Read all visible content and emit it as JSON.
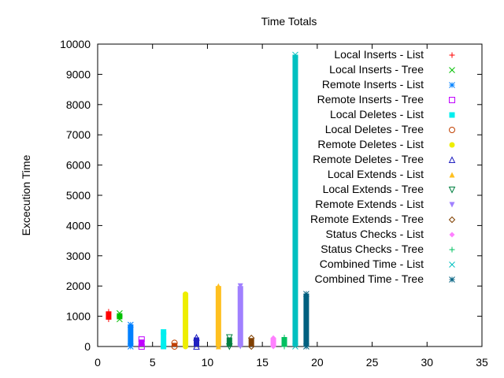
{
  "chart_data": {
    "type": "scatter",
    "title": "Time Totals",
    "xlabel": "",
    "ylabel": "Excecution Time",
    "xlim": [
      0,
      35
    ],
    "ylim": [
      0,
      10000
    ],
    "xticks": [
      0,
      5,
      10,
      15,
      20,
      25,
      30,
      35
    ],
    "yticks": [
      0,
      1000,
      2000,
      3000,
      4000,
      5000,
      6000,
      7000,
      8000,
      9000,
      10000
    ],
    "grid": false,
    "legend_position": "top-right",
    "series": [
      {
        "name": "Local Inserts - List",
        "x": 1,
        "low": 900,
        "high": 1150,
        "marker": "plus",
        "color": "#ff0000"
      },
      {
        "name": "Local Inserts - Tree",
        "x": 2,
        "low": 900,
        "high": 1100,
        "marker": "cross",
        "color": "#00c000"
      },
      {
        "name": "Remote Inserts - List",
        "x": 3,
        "low": 0,
        "high": 720,
        "marker": "asterisk",
        "color": "#0080ff"
      },
      {
        "name": "Remote Inserts - Tree",
        "x": 4,
        "low": 0,
        "high": 230,
        "marker": "square-open",
        "color": "#c000ff"
      },
      {
        "name": "Local Deletes - List",
        "x": 6,
        "low": 0,
        "high": 480,
        "marker": "square-filled",
        "color": "#00eeee"
      },
      {
        "name": "Local Deletes - Tree",
        "x": 7,
        "low": 0,
        "high": 120,
        "marker": "circle-open",
        "color": "#c04000"
      },
      {
        "name": "Remote Deletes - List",
        "x": 8,
        "low": 0,
        "high": 1730,
        "marker": "circle-filled",
        "color": "#eeee00"
      },
      {
        "name": "Remote Deletes - Tree",
        "x": 9,
        "low": 0,
        "high": 300,
        "marker": "triangle-open",
        "color": "#2020c0"
      },
      {
        "name": "Local Extends - List",
        "x": 11,
        "low": 0,
        "high": 2000,
        "marker": "triangle-filled",
        "color": "#ffc020"
      },
      {
        "name": "Local Extends - Tree",
        "x": 12,
        "low": 0,
        "high": 300,
        "marker": "triangle-down-open",
        "color": "#008040"
      },
      {
        "name": "Remote Extends - List",
        "x": 13,
        "low": 0,
        "high": 2000,
        "marker": "triangle-down-filled",
        "color": "#a080ff"
      },
      {
        "name": "Remote Extends - Tree",
        "x": 14,
        "low": 0,
        "high": 280,
        "marker": "diamond-open",
        "color": "#804000"
      },
      {
        "name": "Status Checks - List",
        "x": 16,
        "low": 0,
        "high": 280,
        "marker": "diamond-filled",
        "color": "#ff80ff"
      },
      {
        "name": "Status Checks - Tree",
        "x": 17,
        "low": 0,
        "high": 300,
        "marker": "plus",
        "color": "#00c060"
      },
      {
        "name": "Combined Time - List",
        "x": 18,
        "low": 0,
        "high": 9650,
        "marker": "cross",
        "color": "#00c0c0"
      },
      {
        "name": "Combined Time - Tree",
        "x": 19,
        "low": 0,
        "high": 1740,
        "marker": "asterisk",
        "color": "#006080"
      }
    ]
  }
}
